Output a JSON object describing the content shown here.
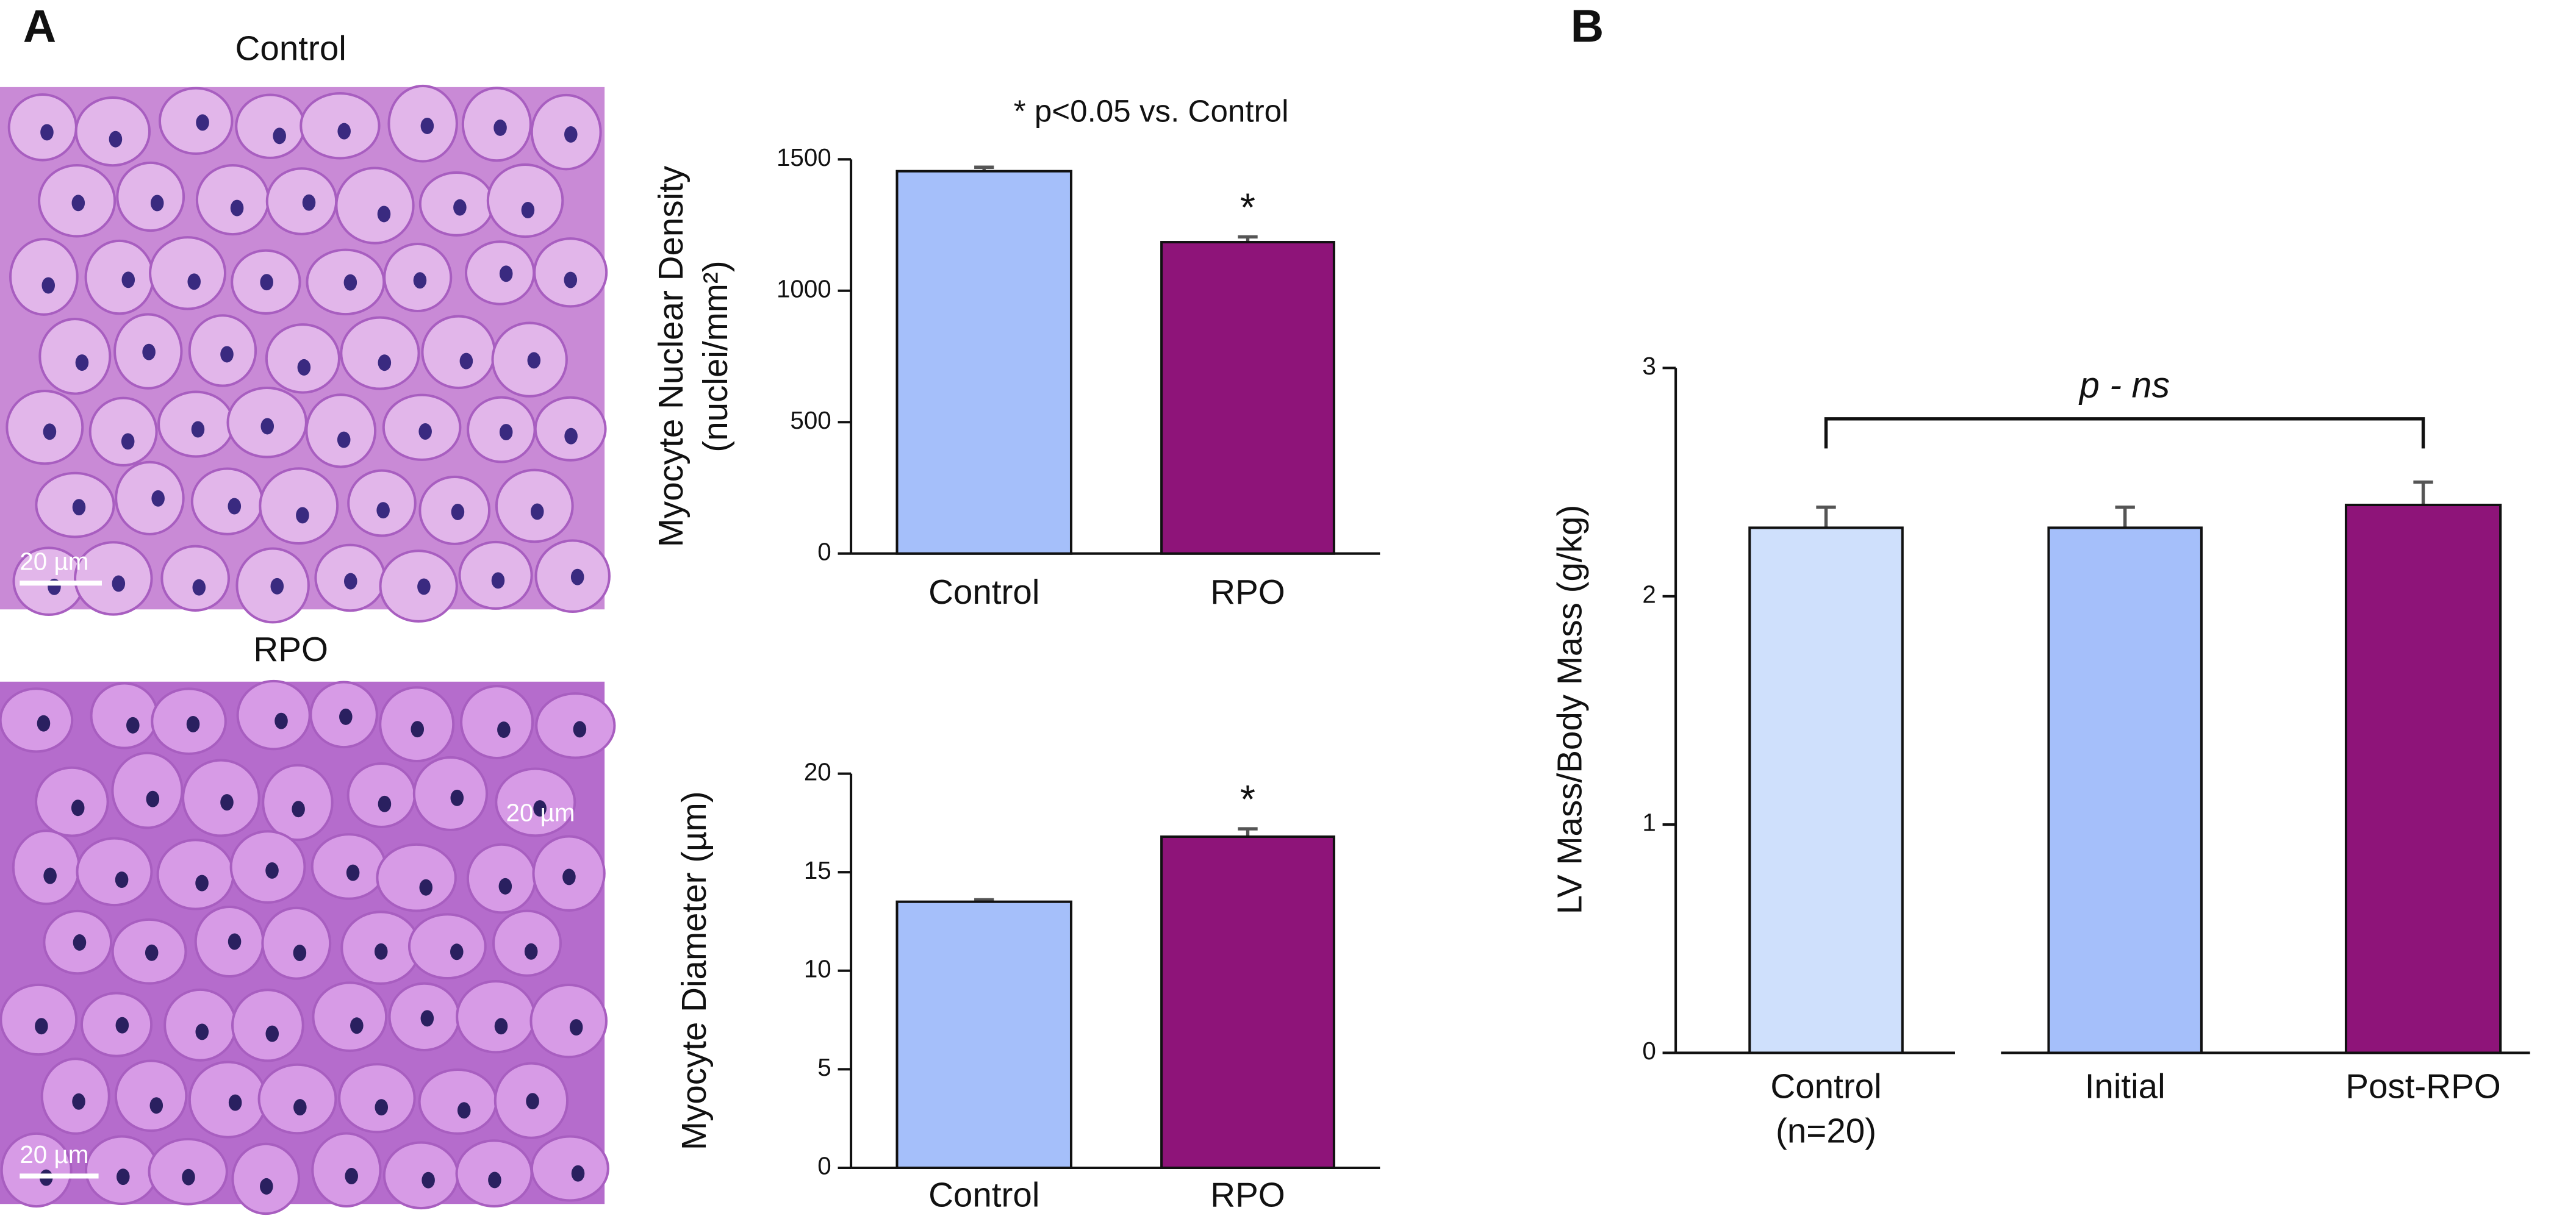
{
  "panels": {
    "a": {
      "label": "A",
      "micrographs": [
        {
          "title": "Control",
          "scale_bars": [
            "20 µm"
          ]
        },
        {
          "title": "RPO",
          "scale_bars": [
            "20 µm",
            "20 µm"
          ]
        }
      ]
    },
    "b": {
      "label": "B"
    }
  },
  "chart_data": [
    {
      "type": "bar",
      "ylabel": [
        "Myocyte Nuclear Density",
        "(nuclei/mm²)"
      ],
      "categories": [
        "Control",
        "RPO"
      ],
      "values": [
        1455,
        1185
      ],
      "errors": [
        15,
        20
      ],
      "colors": [
        "#a5bffa",
        "#8e1479"
      ],
      "ylim": [
        0,
        1500
      ],
      "yticks": [
        0,
        500,
        1000,
        1500
      ],
      "significance_marker": "*",
      "annotation": "* p<0.05 vs. Control"
    },
    {
      "type": "bar",
      "ylabel": [
        "Myocyte Diameter (µm)"
      ],
      "categories": [
        "Control",
        "RPO"
      ],
      "values": [
        13.5,
        16.8
      ],
      "errors": [
        0.1,
        0.4
      ],
      "colors": [
        "#a5bffa",
        "#8e1479"
      ],
      "ylim": [
        0,
        20
      ],
      "yticks": [
        0,
        5,
        10,
        15,
        20
      ],
      "significance_marker": "*"
    },
    {
      "type": "bar",
      "ylabel": [
        "LV Mass/Body Mass (g/kg)"
      ],
      "categories": [
        "Control\n(n=20)",
        "Initial",
        "Post-RPO"
      ],
      "values": [
        2.3,
        2.3,
        2.4
      ],
      "errors": [
        0.09,
        0.09,
        0.1
      ],
      "colors": [
        "#cfe0fc",
        "#a5bffa",
        "#8e1479"
      ],
      "ylim": [
        0,
        3
      ],
      "yticks": [
        0,
        1,
        2,
        3
      ],
      "bracket_label": "p - ns"
    }
  ]
}
